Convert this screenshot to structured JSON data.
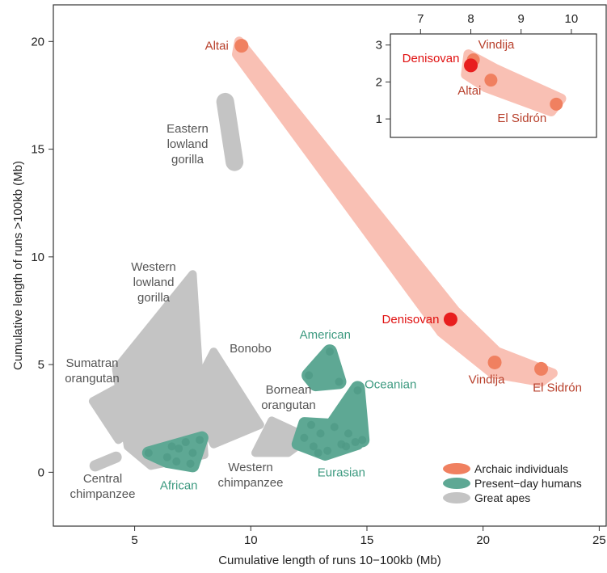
{
  "colors": {
    "archaic": "#f08060",
    "archaic_region": "#f9c0b4",
    "humans": "#5ea894",
    "apes": "#c4c4c4",
    "archaic_text": "#b8402c",
    "denisovan_text": "#e01010",
    "denisovan_point": "#e81e1e",
    "human_text": "#3d9a80",
    "ape_text": "#555555"
  },
  "chart_data": [
    {
      "type": "scatter",
      "title": "",
      "xlabel": "Cumulative length of runs 10−100kb (Mb)",
      "ylabel": "Cumulative length of runs >100kb (Mb)",
      "xlim": [
        1.5,
        25.3
      ],
      "ylim": [
        -2.5,
        21.7
      ],
      "xticks": [
        "5",
        "10",
        "15",
        "20",
        "25"
      ],
      "yticks": [
        "0",
        "5",
        "10",
        "15",
        "20"
      ],
      "legend": {
        "position": "bottom-right",
        "entries": [
          "Archaic individuals",
          "Present−day humans",
          "Great apes"
        ]
      },
      "archaic_points": [
        {
          "label": "Altai",
          "x": 9.6,
          "y": 19.8
        },
        {
          "label": "Denisovan",
          "x": 18.6,
          "y": 7.1
        },
        {
          "label": "Vindija",
          "x": 20.5,
          "y": 5.1
        },
        {
          "label": "El Sidrón",
          "x": 22.5,
          "y": 4.8
        }
      ],
      "human_groups": [
        {
          "label": "American",
          "points": [
            [
              12.5,
              4.5
            ],
            [
              13.4,
              5.6
            ],
            [
              13.8,
              4.2
            ]
          ]
        },
        {
          "label": "Oceanian",
          "points": [
            [
              14.6,
              3.8
            ],
            [
              14.2,
              1.8
            ],
            [
              14.8,
              1.5
            ],
            [
              13.9,
              1.3
            ]
          ]
        },
        {
          "label": "Eurasian",
          "points": [
            [
              12.3,
              1.6
            ],
            [
              12.6,
              2.2
            ],
            [
              12.7,
              1.2
            ],
            [
              13.0,
              1.8
            ],
            [
              13.3,
              1.0
            ],
            [
              13.6,
              2.1
            ],
            [
              14.1,
              1.2
            ],
            [
              14.5,
              1.4
            ],
            [
              12.9,
              0.9
            ]
          ]
        },
        {
          "label": "African",
          "points": [
            [
              5.6,
              0.9
            ],
            [
              6.4,
              0.7
            ],
            [
              6.9,
              1.1
            ],
            [
              7.2,
              1.4
            ],
            [
              7.4,
              0.4
            ],
            [
              7.8,
              1.5
            ],
            [
              6.8,
              0.5
            ],
            [
              7.5,
              0.9
            ],
            [
              6.6,
              1.2
            ]
          ]
        }
      ],
      "ape_groups": [
        {
          "label": "Eastern lowland gorilla"
        },
        {
          "label": "Western lowland gorilla"
        },
        {
          "label": "Bonobo"
        },
        {
          "label": "Sumatran orangutan"
        },
        {
          "label": "Bornean orangutan"
        },
        {
          "label": "Central chimpanzee"
        },
        {
          "label": "Western chimpanzee"
        }
      ]
    },
    {
      "type": "scatter",
      "title": "",
      "xlim": [
        6.4,
        10.5
      ],
      "ylim": [
        0.5,
        3.3
      ],
      "xticks": [
        "7",
        "8",
        "9",
        "10"
      ],
      "yticks": [
        "1",
        "2",
        "3"
      ],
      "points": [
        {
          "label": "Denisovan",
          "x": 8.0,
          "y": 2.45
        },
        {
          "label": "Vindija",
          "x": 8.05,
          "y": 2.6
        },
        {
          "label": "Altai",
          "x": 8.4,
          "y": 2.05
        },
        {
          "label": "El Sidrón",
          "x": 9.7,
          "y": 1.4
        }
      ]
    }
  ]
}
